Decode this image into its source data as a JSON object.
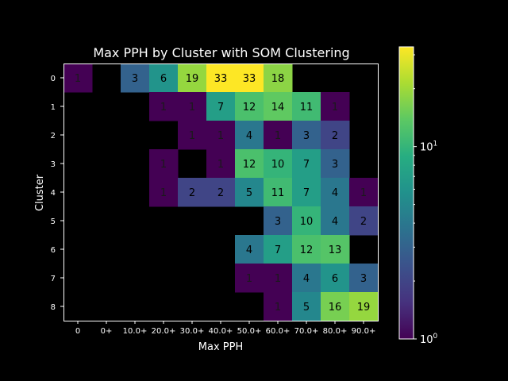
{
  "chart_data": {
    "type": "heatmap",
    "title": "Max PPH by Cluster with SOM Clustering",
    "xlabel": "Max PPH",
    "ylabel": "Cluster",
    "x_categories": [
      "0",
      "0+",
      "10.0+",
      "20.0+",
      "30.0+",
      "40.0+",
      "50.0+",
      "60.0+",
      "70.0+",
      "80.0+",
      "90.0+"
    ],
    "y_categories": [
      "0",
      "1",
      "2",
      "3",
      "4",
      "5",
      "6",
      "7",
      "8"
    ],
    "values": [
      [
        1,
        null,
        3,
        6,
        19,
        33,
        33,
        18,
        null,
        null,
        null
      ],
      [
        null,
        null,
        null,
        1,
        1,
        7,
        12,
        14,
        11,
        1,
        null
      ],
      [
        null,
        null,
        null,
        null,
        1,
        1,
        4,
        1,
        3,
        2,
        null
      ],
      [
        null,
        null,
        null,
        1,
        null,
        1,
        12,
        10,
        7,
        3,
        null
      ],
      [
        null,
        null,
        null,
        1,
        2,
        2,
        5,
        11,
        7,
        4,
        1
      ],
      [
        null,
        null,
        null,
        null,
        null,
        null,
        null,
        3,
        10,
        4,
        2
      ],
      [
        null,
        null,
        null,
        null,
        null,
        null,
        4,
        7,
        12,
        13,
        null
      ],
      [
        null,
        null,
        null,
        null,
        null,
        null,
        1,
        1,
        4,
        6,
        3
      ],
      [
        null,
        null,
        null,
        null,
        null,
        null,
        null,
        1,
        5,
        16,
        19
      ]
    ],
    "colorbar": {
      "scale": "log",
      "colormap": "viridis",
      "range": [
        1,
        33
      ],
      "tick_bases": [
        "10",
        "10"
      ],
      "tick_exponents": [
        "0",
        "1"
      ]
    },
    "grid": false
  }
}
